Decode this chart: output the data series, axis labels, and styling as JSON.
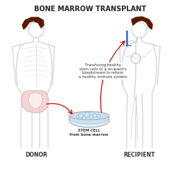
{
  "title": "BONE MARROW TRANSPLANT",
  "donor_label": "DONOR",
  "recipient_label": "RECIPIENT",
  "stem_cell_label": "STEM CELL\nfrom bone marrow",
  "annotation_text": "Transfusing healthy\nstem cells to a recipient's\nbloodstream to reform\na healthy immune system",
  "bg_color": "#ffffff",
  "body_outline_color": "#cccccc",
  "skeleton_color": "#dddddd",
  "bone_highlight_color": "#f0c8c8",
  "hair_color": "#5a1a00",
  "blood_vessel_color": "#cccccc",
  "arrow_color": "#cc0000",
  "stem_cell_color": "#b0d8f0",
  "stem_cell_edge_color": "#aaaaaa",
  "dish_color": "#e8e8e8",
  "blood_stream_color": "#4477bb",
  "title_fontsize": 7,
  "label_fontsize": 5.5,
  "annotation_fontsize": 3.8
}
